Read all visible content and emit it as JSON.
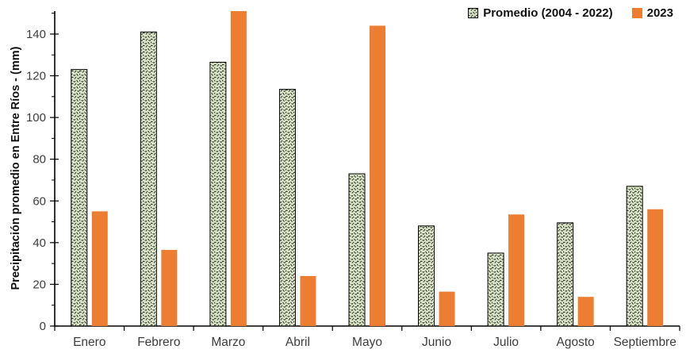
{
  "chart_data": {
    "type": "bar",
    "title": "",
    "xlabel": "",
    "ylabel": "Precipitación promedio en Entre Ríos - (mm)",
    "ylim": [
      0,
      151
    ],
    "ytick_major_step": 20,
    "ytick_minor_step": 10,
    "ytick_max_label": 140,
    "grid": false,
    "legend_position": "top-right",
    "categories": [
      "Enero",
      "Febrero",
      "Marzo",
      "Abril",
      "Mayo",
      "Junio",
      "Julio",
      "Agosto",
      "Septiembre"
    ],
    "series": [
      {
        "name": "Promedio (2004 - 2022)",
        "style": "pattern-wave",
        "fill": "#d9e5c4",
        "pattern_stroke": "#2b2b2b",
        "border": "#000000",
        "values": [
          123,
          141,
          126.5,
          113.5,
          73,
          48,
          35,
          49.5,
          67
        ]
      },
      {
        "name": "2023",
        "style": "solid",
        "fill": "#ED7D31",
        "values": [
          55,
          36.5,
          151,
          24,
          144,
          16.5,
          53.5,
          14,
          56
        ]
      }
    ]
  },
  "colors": {
    "background": "#ffffff",
    "axis": "#000000",
    "tick_label": "#3d3d3d",
    "legend_text": "#111111"
  }
}
